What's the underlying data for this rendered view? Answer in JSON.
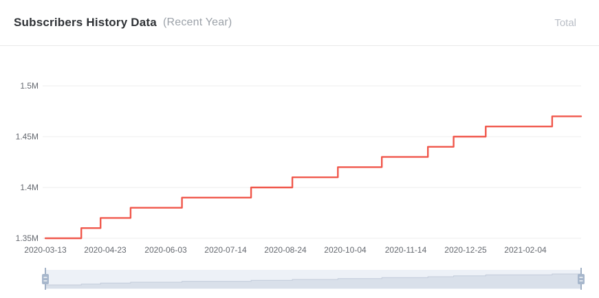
{
  "header": {
    "title": "Subscribers History Data",
    "subtitle": "(Recent Year)",
    "legend_label": "Total"
  },
  "colors": {
    "series_line": "#f0564a",
    "grid_line": "#ededed",
    "axis_text": "#63676e",
    "title_text": "#2e3135",
    "subtitle_text": "#9ba1a8",
    "legend_text": "#b9bec6",
    "header_divider": "#e9e9e9",
    "slider_track": "#edf1f7",
    "slider_area_fill": "#d9e0ea",
    "slider_area_line": "#c2cbda",
    "slider_handle": "#a7b7cc"
  },
  "chart_data": {
    "type": "line",
    "line_style": "step",
    "title": "Subscribers History Data (Recent Year)",
    "legend": [
      "Total"
    ],
    "legend_position": "top-right",
    "grid": true,
    "x_axis": {
      "tick_labels": [
        "2020-03-13",
        "2020-04-23",
        "2020-06-03",
        "2020-07-14",
        "2020-08-24",
        "2020-10-04",
        "2020-11-14",
        "2020-12-25",
        "2021-02-04"
      ],
      "range_est": [
        "2020-03-13",
        "2021-03-14"
      ],
      "tick_interval_days": 41
    },
    "y_axis": {
      "tick_labels": [
        "1.35M",
        "1.4M",
        "1.45M",
        "1.5M"
      ],
      "tick_values_millions": [
        1.35,
        1.4,
        1.45,
        1.5
      ],
      "ylim_millions": [
        1.35,
        1.5
      ],
      "unit": "M subscribers"
    },
    "series": [
      {
        "name": "Total",
        "unit": "millions",
        "segments": [
          {
            "value": 1.35,
            "from_frac": 0.0,
            "to_frac": 0.067,
            "start_date_est": "2020-03-13"
          },
          {
            "value": 1.36,
            "from_frac": 0.067,
            "to_frac": 0.103,
            "start_date_est": "2020-04-06"
          },
          {
            "value": 1.37,
            "from_frac": 0.103,
            "to_frac": 0.159,
            "start_date_est": "2020-04-20"
          },
          {
            "value": 1.38,
            "from_frac": 0.159,
            "to_frac": 0.255,
            "start_date_est": "2020-05-10"
          },
          {
            "value": 1.39,
            "from_frac": 0.255,
            "to_frac": 0.384,
            "start_date_est": "2020-06-14"
          },
          {
            "value": 1.4,
            "from_frac": 0.384,
            "to_frac": 0.461,
            "start_date_est": "2020-07-31"
          },
          {
            "value": 1.41,
            "from_frac": 0.461,
            "to_frac": 0.546,
            "start_date_est": "2020-08-29"
          },
          {
            "value": 1.42,
            "from_frac": 0.546,
            "to_frac": 0.628,
            "start_date_est": "2020-09-29"
          },
          {
            "value": 1.43,
            "from_frac": 0.628,
            "to_frac": 0.714,
            "start_date_est": "2020-10-29"
          },
          {
            "value": 1.44,
            "from_frac": 0.714,
            "to_frac": 0.762,
            "start_date_est": "2020-11-29"
          },
          {
            "value": 1.45,
            "from_frac": 0.762,
            "to_frac": 0.822,
            "start_date_est": "2020-12-17"
          },
          {
            "value": 1.46,
            "from_frac": 0.822,
            "to_frac": 0.946,
            "start_date_est": "2021-01-08"
          },
          {
            "value": 1.47,
            "from_frac": 0.946,
            "to_frac": 1.0,
            "start_date_est": "2021-02-22"
          }
        ]
      }
    ],
    "datazoom": {
      "selected_range_percent": [
        0,
        100
      ]
    }
  }
}
